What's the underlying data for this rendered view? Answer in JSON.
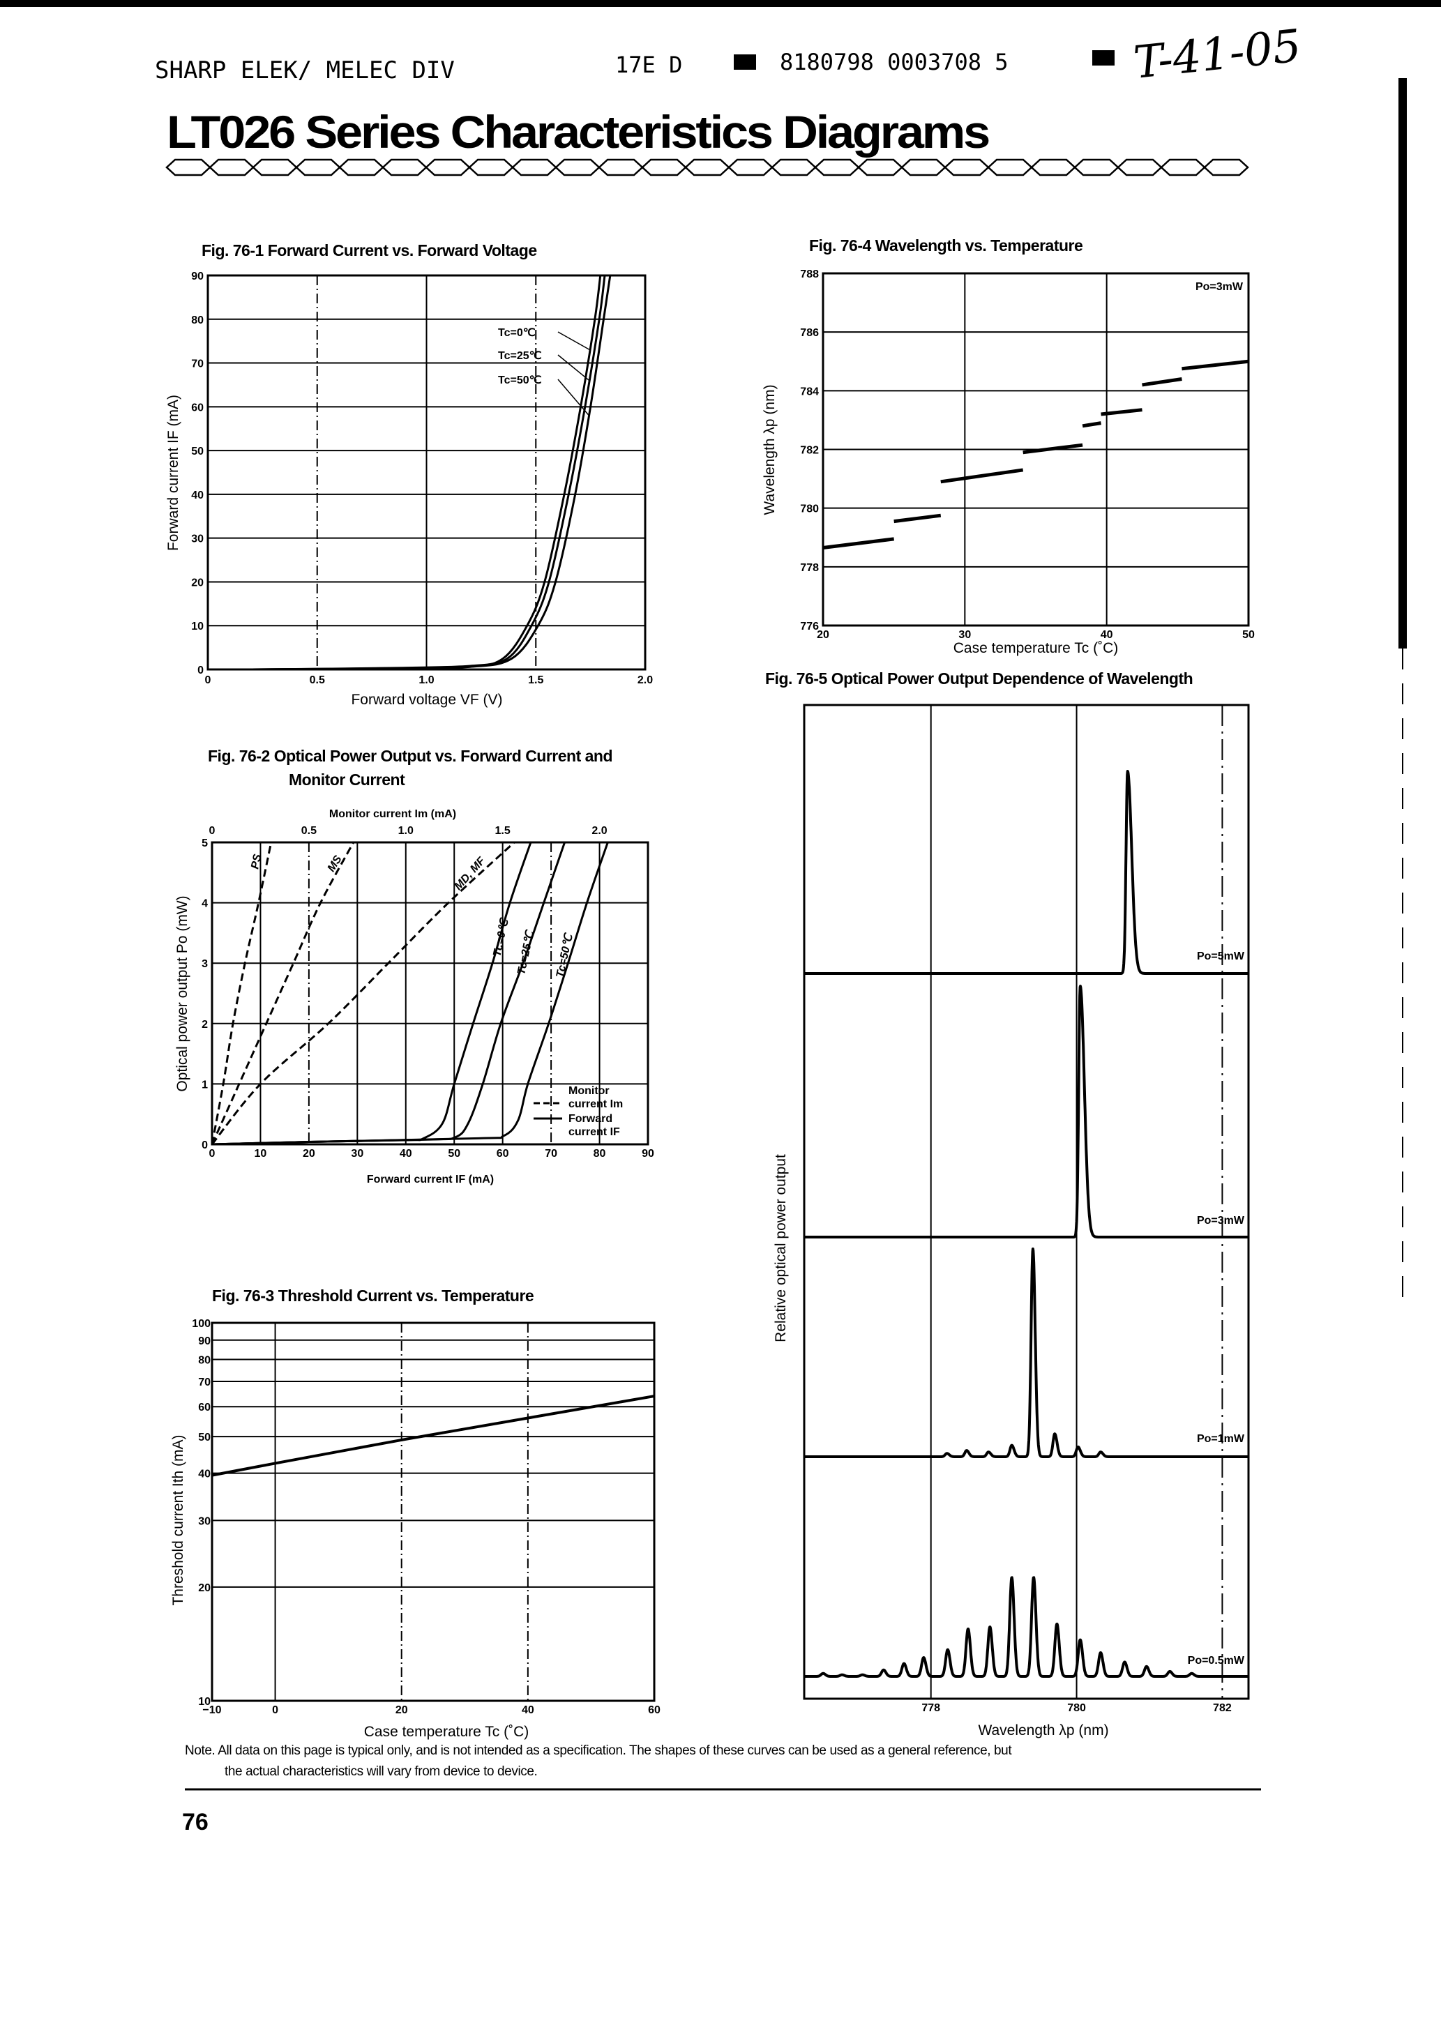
{
  "header": {
    "division": "SHARP ELEK/ MELEC DIV",
    "code": "17E D",
    "catalog_number": "8180798 0003708 5",
    "handwritten": "T-41-05"
  },
  "title": "LT026 Series Characteristics Diagrams",
  "note": {
    "line1": "Note. All data on this page is typical only, and is not intended as a specification. The shapes of these curves can be used as a general reference, but",
    "line2": "the actual characteristics will vary from device to device."
  },
  "page_number": "76",
  "chart_data": [
    {
      "id": "fig76-1",
      "type": "line",
      "title": "Fig. 76-1 Forward Current vs. Forward Voltage",
      "xlabel": "Forward voltage VF (V)",
      "ylabel": "Forward current IF (mA)",
      "xlim": [
        0,
        2.0
      ],
      "ylim": [
        0,
        90
      ],
      "xticks": [
        0,
        0.5,
        1.0,
        1.5,
        2.0
      ],
      "xtick_labels": [
        "0",
        "0.5",
        "1.0",
        "1.5",
        "2.0"
      ],
      "yticks": [
        0,
        10,
        20,
        30,
        40,
        50,
        60,
        70,
        80,
        90
      ],
      "ytick_labels": [
        "0",
        "10",
        "20",
        "30",
        "40",
        "50",
        "60",
        "70",
        "80",
        "90"
      ],
      "grid": true,
      "series": [
        {
          "name": "Tc=0℃",
          "points": [
            [
              0.2,
              0
            ],
            [
              0.8,
              0.3
            ],
            [
              1.2,
              0.8
            ],
            [
              1.35,
              2.5
            ],
            [
              1.46,
              10
            ],
            [
              1.54,
              20
            ],
            [
              1.63,
              40
            ],
            [
              1.705,
              60
            ],
            [
              1.77,
              80
            ],
            [
              1.795,
              90
            ]
          ]
        },
        {
          "name": "Tc=25℃",
          "points": [
            [
              0.2,
              0
            ],
            [
              0.8,
              0.25
            ],
            [
              1.2,
              0.7
            ],
            [
              1.37,
              2.5
            ],
            [
              1.48,
              10
            ],
            [
              1.56,
              20
            ],
            [
              1.65,
              40
            ],
            [
              1.725,
              60
            ],
            [
              1.79,
              80
            ],
            [
              1.815,
              90
            ]
          ]
        },
        {
          "name": "Tc=50℃",
          "points": [
            [
              0.2,
              0
            ],
            [
              0.8,
              0.2
            ],
            [
              1.2,
              0.6
            ],
            [
              1.39,
              2.5
            ],
            [
              1.51,
              10
            ],
            [
              1.59,
              20
            ],
            [
              1.68,
              40
            ],
            [
              1.75,
              60
            ],
            [
              1.81,
              80
            ],
            [
              1.84,
              90
            ]
          ]
        }
      ]
    },
    {
      "id": "fig76-2",
      "type": "line",
      "title_line1": "Fig. 76-2 Optical Power Output vs. Forward Current and",
      "title_line2": "Monitor Current",
      "xlabel": "Forward current IF (mA)",
      "x2label": "Monitor current Im (mA)",
      "ylabel": "Optical power output Po (mW)",
      "xlim": [
        0,
        90
      ],
      "x2lim": [
        0,
        2.25
      ],
      "ylim": [
        0,
        5
      ],
      "xticks": [
        0,
        10,
        20,
        30,
        40,
        50,
        60,
        70,
        80,
        90
      ],
      "xtick_labels": [
        "0",
        "10",
        "20",
        "30",
        "40",
        "50",
        "60",
        "70",
        "80",
        "90"
      ],
      "x2ticks": [
        0,
        0.5,
        1.0,
        1.5,
        2.0
      ],
      "x2tick_labels": [
        "0",
        "0.5",
        "1.0",
        "1.5",
        "2.0"
      ],
      "yticks": [
        0,
        1,
        2,
        3,
        4,
        5
      ],
      "ytick_labels": [
        "0",
        "1",
        "2",
        "3",
        "4",
        "5"
      ],
      "grid": true,
      "legend": {
        "position": "bottom-right",
        "monitor": [
          "Monitor",
          "current Im"
        ],
        "forward": [
          "Forward",
          "current IF"
        ]
      },
      "forward_series": [
        {
          "name": "Tc=0℃",
          "points": [
            [
              0,
              0
            ],
            [
              20,
              0.04
            ],
            [
              40,
              0.07
            ],
            [
              43.7,
              0.1
            ],
            [
              47.6,
              0.35
            ],
            [
              50,
              1
            ],
            [
              53.9,
              2
            ],
            [
              57.9,
              3
            ],
            [
              61.5,
              4
            ],
            [
              65.8,
              5
            ]
          ]
        },
        {
          "name": "Tc=25℃",
          "points": [
            [
              0,
              0
            ],
            [
              20,
              0.04
            ],
            [
              45,
              0.08
            ],
            [
              50.3,
              0.12
            ],
            [
              52.9,
              0.35
            ],
            [
              55.9,
              1
            ],
            [
              59.6,
              2
            ],
            [
              64.2,
              3
            ],
            [
              68.5,
              4
            ],
            [
              72.8,
              5
            ]
          ]
        },
        {
          "name": "Tc=50℃",
          "points": [
            [
              0,
              0
            ],
            [
              20,
              0.04
            ],
            [
              55,
              0.1
            ],
            [
              60.2,
              0.14
            ],
            [
              63.2,
              0.4
            ],
            [
              65.2,
              1
            ],
            [
              69.5,
              2
            ],
            [
              73.5,
              3
            ],
            [
              77.4,
              4
            ],
            [
              81.7,
              5
            ]
          ]
        }
      ],
      "monitor_series": [
        {
          "name": "PS",
          "points": [
            [
              0,
              0
            ],
            [
              0.058,
              1
            ],
            [
              0.108,
              2
            ],
            [
              0.17,
              3
            ],
            [
              0.24,
              4
            ],
            [
              0.305,
              5
            ]
          ]
        },
        {
          "name": "MS",
          "points": [
            [
              0,
              0
            ],
            [
              0.14,
              1
            ],
            [
              0.28,
              2
            ],
            [
              0.42,
              3
            ],
            [
              0.56,
              4
            ],
            [
              0.73,
              5
            ]
          ]
        },
        {
          "name": "MD, MF",
          "points": [
            [
              0,
              0
            ],
            [
              0.25,
              1
            ],
            [
              0.6,
              2
            ],
            [
              0.91,
              3
            ],
            [
              1.22,
              4
            ],
            [
              1.56,
              5
            ]
          ]
        }
      ]
    },
    {
      "id": "fig76-3",
      "type": "line",
      "title": "Fig. 76-3 Threshold Current vs. Temperature",
      "xlabel": "Case temperature Tc (˚C)",
      "ylabel": "Threshold current Ith (mA)",
      "xlim": [
        -10,
        60
      ],
      "ylim": [
        10,
        100
      ],
      "yscale": "log",
      "xticks": [
        -10,
        0,
        20,
        40,
        60
      ],
      "xtick_labels": [
        "−10",
        "0",
        "20",
        "40",
        "60"
      ],
      "yticks": [
        10,
        20,
        30,
        40,
        50,
        60,
        70,
        80,
        90,
        100
      ],
      "ytick_labels": [
        "10",
        "20",
        "30",
        "40",
        "50",
        "60",
        "70",
        "80",
        "90",
        "100"
      ],
      "grid": true,
      "series": [
        {
          "points": [
            [
              -10,
              39.5
            ],
            [
              0,
              42.5
            ],
            [
              20,
              49
            ],
            [
              40,
              56
            ],
            [
              60,
              64
            ]
          ]
        }
      ]
    },
    {
      "id": "fig76-4",
      "type": "line",
      "title": "Fig. 76-4 Wavelength vs. Temperature",
      "xlabel": "Case temperature Tc (˚C)",
      "ylabel": "Wavelength λp (nm)",
      "annotation": "Po=3mW",
      "xlim": [
        20,
        50
      ],
      "ylim": [
        776,
        788
      ],
      "xticks": [
        20,
        30,
        40,
        50
      ],
      "xtick_labels": [
        "20",
        "30",
        "40",
        "50"
      ],
      "yticks": [
        776,
        778,
        780,
        782,
        784,
        786,
        788
      ],
      "ytick_labels": [
        "776",
        "778",
        "780",
        "782",
        "784",
        "786",
        "788"
      ],
      "grid": true,
      "segments": [
        [
          [
            20,
            778.65
          ],
          [
            25,
            778.95
          ]
        ],
        [
          [
            25,
            779.55
          ],
          [
            28.3,
            779.75
          ]
        ],
        [
          [
            28.3,
            780.9
          ],
          [
            34.1,
            781.3
          ]
        ],
        [
          [
            34.1,
            781.9
          ],
          [
            38.3,
            782.15
          ]
        ],
        [
          [
            38.3,
            782.8
          ],
          [
            39.6,
            782.9
          ]
        ],
        [
          [
            39.6,
            783.2
          ],
          [
            42.5,
            783.35
          ]
        ],
        [
          [
            42.5,
            784.2
          ],
          [
            45.3,
            784.4
          ]
        ],
        [
          [
            45.3,
            784.75
          ],
          [
            50,
            785.0
          ]
        ]
      ]
    },
    {
      "id": "fig76-5",
      "type": "line",
      "title": "Fig. 76-5 Optical Power Output Dependence of Wavelength",
      "xlabel": "Wavelength λp (nm)",
      "ylabel": "Relative optical power output",
      "xlim": [
        776.26,
        782.36
      ],
      "xticks": [
        778,
        780,
        782
      ],
      "xtick_labels": [
        "778",
        "780",
        "782"
      ],
      "grid": true,
      "panels": [
        {
          "label": "Po=5mW",
          "peaks": [
            [
              780.7,
              1
            ]
          ]
        },
        {
          "label": "Po=3mW",
          "peaks": [
            [
              780.05,
              1
            ]
          ]
        },
        {
          "label": "Po=1mW",
          "peaks": [
            [
              778.22,
              0.016
            ],
            [
              778.49,
              0.03
            ],
            [
              778.79,
              0.023
            ],
            [
              779.11,
              0.055
            ],
            [
              779.4,
              1
            ],
            [
              779.7,
              0.11
            ],
            [
              780.02,
              0.047
            ],
            [
              780.33,
              0.023
            ]
          ]
        },
        {
          "label": "Po=0.5mW",
          "peaks": [
            [
              776.52,
              0.03
            ],
            [
              776.78,
              0.016
            ],
            [
              777.06,
              0.016
            ],
            [
              777.35,
              0.065
            ],
            [
              777.63,
              0.13
            ],
            [
              777.9,
              0.19
            ],
            [
              778.23,
              0.27
            ],
            [
              778.51,
              0.48
            ],
            [
              778.81,
              0.5
            ],
            [
              779.11,
              1
            ],
            [
              779.41,
              1
            ],
            [
              779.73,
              0.53
            ],
            [
              780.05,
              0.37
            ],
            [
              780.33,
              0.24
            ],
            [
              780.66,
              0.145
            ],
            [
              780.96,
              0.1
            ],
            [
              781.28,
              0.05
            ],
            [
              781.58,
              0.03
            ]
          ]
        }
      ]
    }
  ]
}
